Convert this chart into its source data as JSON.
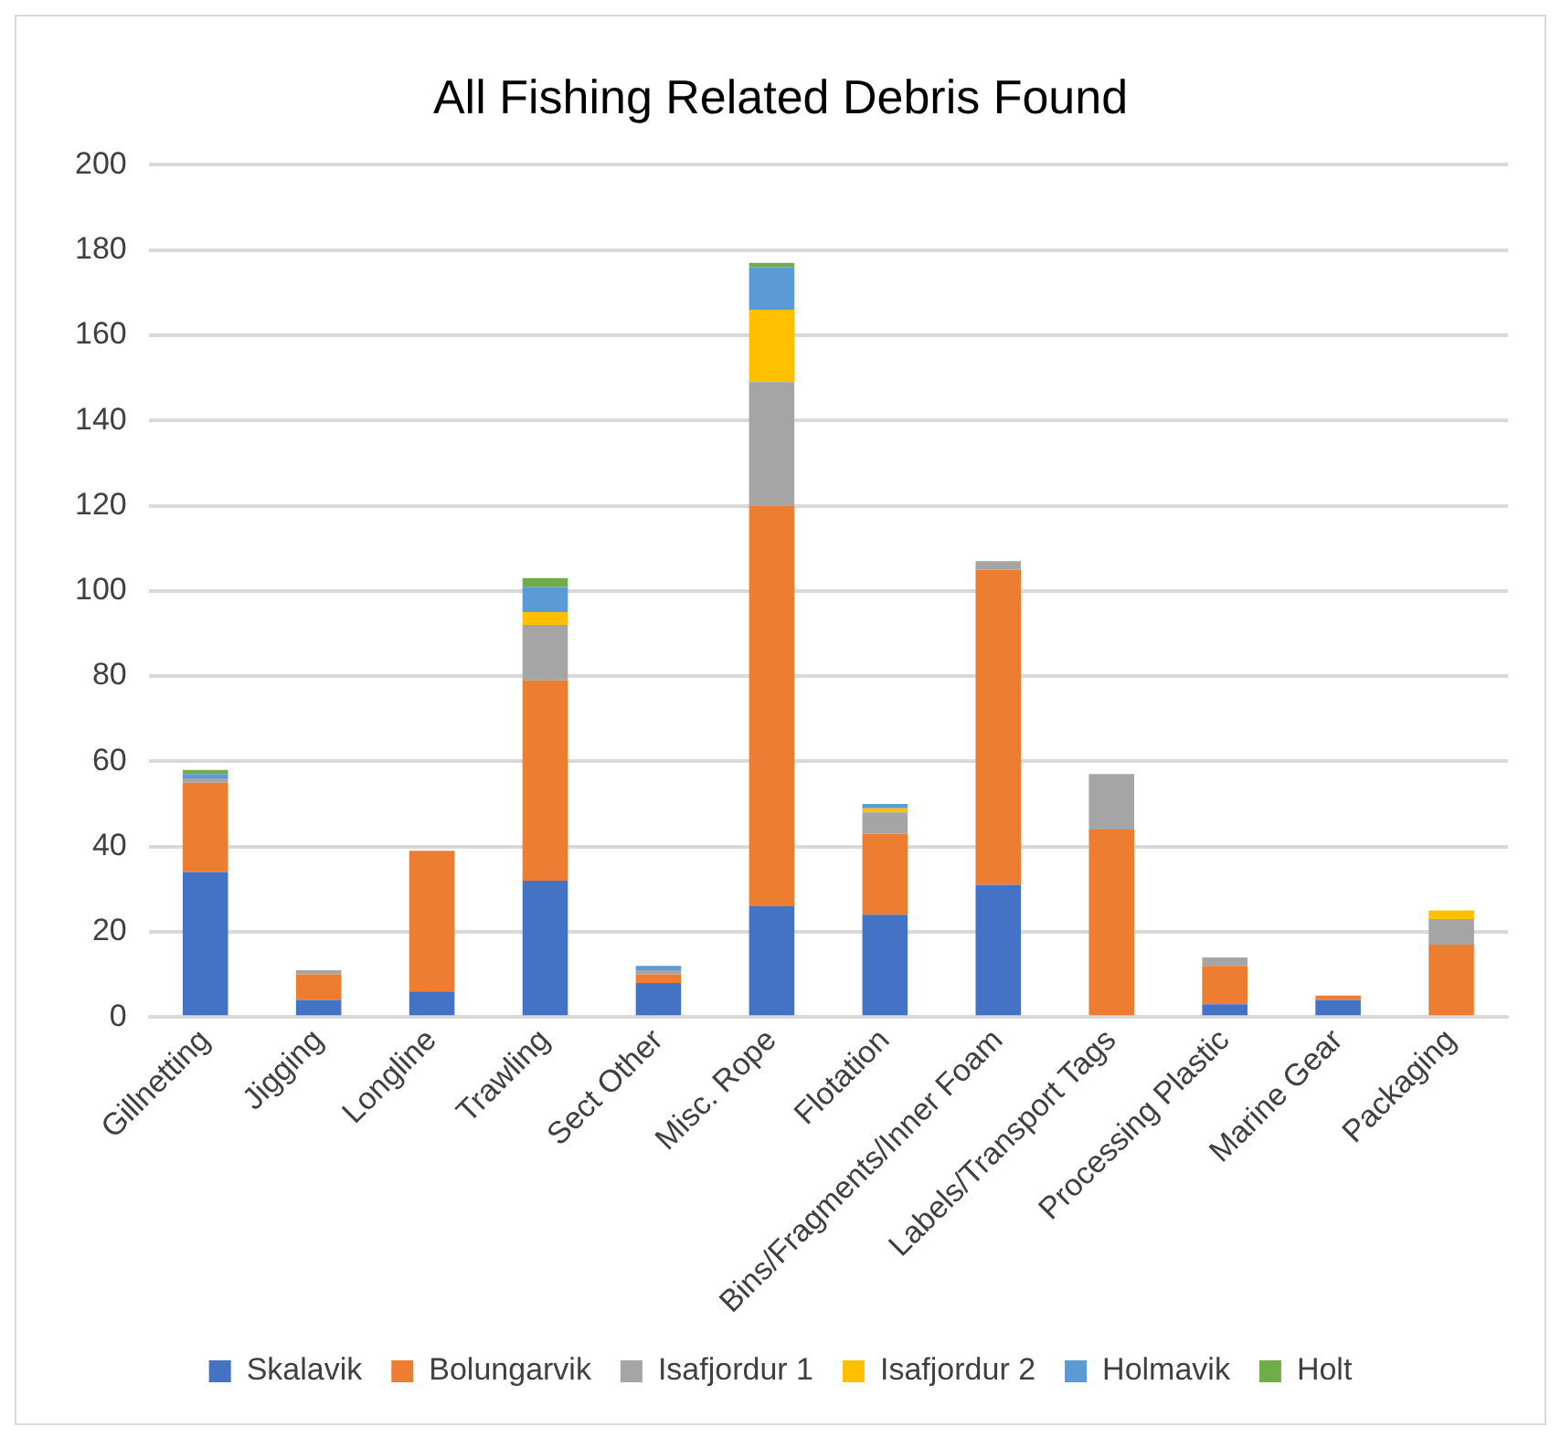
{
  "chart_data": {
    "type": "bar",
    "title": "All Fishing Related Debris Found",
    "stacked": true,
    "categories": [
      "Gillnetting",
      "Jigging",
      "Longline",
      "Trawling",
      "Sect Other",
      "Misc. Rope",
      "Flotation",
      "Bins/Fragments/Inner Foam",
      "Labels/Transport Tags",
      "Processing Plastic",
      "Marine Gear",
      "Packaging"
    ],
    "series": [
      {
        "name": "Skalavik",
        "color": "#4472c4",
        "values": [
          34,
          4,
          6,
          32,
          8,
          26,
          24,
          31,
          0,
          3,
          4,
          0
        ]
      },
      {
        "name": "Bolungarvik",
        "color": "#ed7d31",
        "values": [
          21,
          6,
          33,
          47,
          2,
          94,
          19,
          74,
          44,
          9,
          1,
          17
        ]
      },
      {
        "name": "Isafjordur 1",
        "color": "#a5a5a5",
        "values": [
          1,
          1,
          0,
          13,
          1,
          29,
          5,
          2,
          13,
          2,
          0,
          6
        ]
      },
      {
        "name": "Isafjordur 2",
        "color": "#ffc000",
        "values": [
          0,
          0,
          0,
          3,
          0,
          17,
          1,
          0,
          0,
          0,
          0,
          2
        ]
      },
      {
        "name": "Holmavik",
        "color": "#5b9bd5",
        "values": [
          1,
          0,
          0,
          6,
          1,
          10,
          1,
          0,
          0,
          0,
          0,
          0
        ]
      },
      {
        "name": "Holt",
        "color": "#70ad47",
        "values": [
          1,
          0,
          0,
          2,
          0,
          1,
          0,
          0,
          0,
          0,
          0,
          0
        ]
      }
    ],
    "ylim": [
      0,
      200
    ],
    "yticks": [
      0,
      20,
      40,
      60,
      80,
      100,
      120,
      140,
      160,
      180,
      200
    ],
    "grid": "y",
    "legend": "bottom"
  }
}
